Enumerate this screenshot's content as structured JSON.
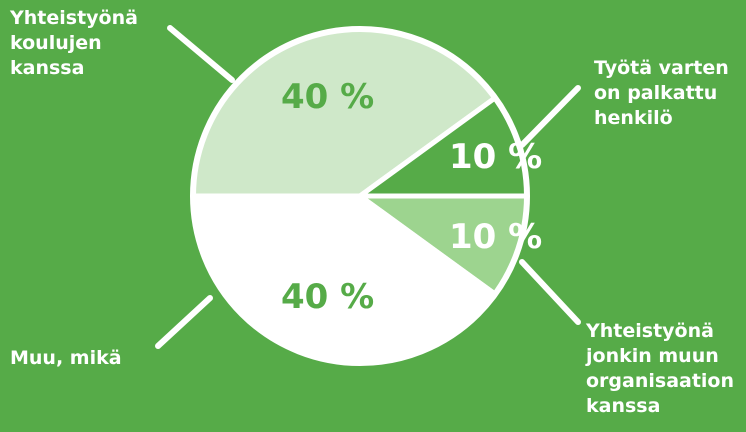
{
  "chart_data": {
    "type": "pie",
    "slices": [
      {
        "label": "Yhteistyönä\nkoulujen\nkanssa",
        "value": 40,
        "value_label": "40 %",
        "color": "#cfe8c9",
        "label_color": "#56ab48"
      },
      {
        "label": "Työtä varten\non palkattu\nhenkilö",
        "value": 10,
        "value_label": "10 %",
        "color": "#56ab48",
        "label_color": "#ffffff"
      },
      {
        "label": "Yhteistyönä\njonkin muun\norganisaation\nkanssa",
        "value": 10,
        "value_label": "10 %",
        "color": "#9dd48f",
        "label_color": "#ffffff"
      },
      {
        "label": "Muu, mikä",
        "value": 40,
        "value_label": "40 %",
        "color": "#ffffff",
        "label_color": "#56ab48"
      }
    ]
  },
  "colors": {
    "background": "#56ab48",
    "outline": "#ffffff"
  }
}
